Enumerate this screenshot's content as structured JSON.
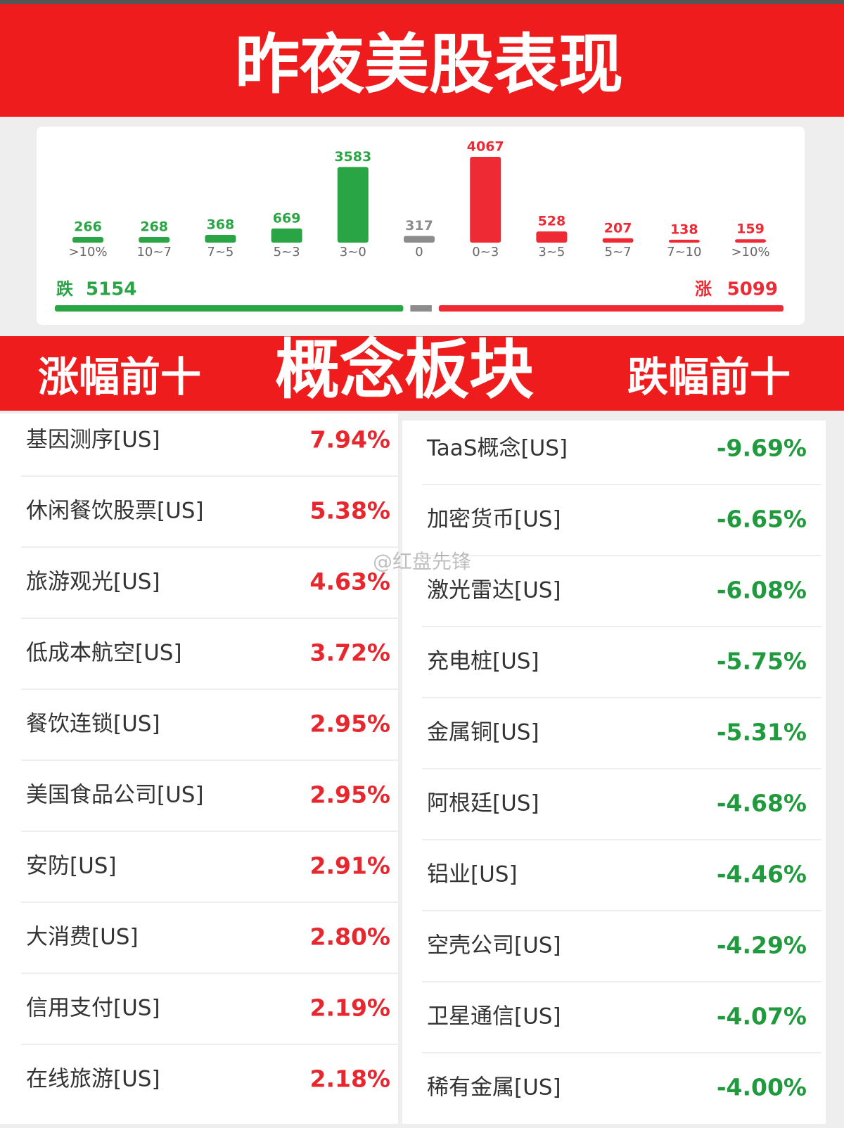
{
  "header": {
    "title": "昨夜美股表现"
  },
  "chart_data": {
    "type": "bar",
    "categories": [
      ">10%",
      "10~7",
      "7~5",
      "5~3",
      "3~0",
      "0",
      "0~3",
      "3~5",
      "5~7",
      "7~10",
      ">10%"
    ],
    "values": [
      266,
      268,
      368,
      669,
      3583,
      317,
      4067,
      528,
      207,
      138,
      159
    ],
    "colors": [
      "#2aa545",
      "#2aa545",
      "#2aa545",
      "#2aa545",
      "#2aa545",
      "#8c8c8c",
      "#ee2a35",
      "#ee2a35",
      "#ee2a35",
      "#ee2a35",
      "#ee2a35"
    ],
    "ylim": [
      0,
      4067
    ],
    "fall": {
      "label": "跌",
      "value": 5154,
      "color": "#2aa545"
    },
    "rise": {
      "label": "涨",
      "value": 5099,
      "color": "#ee2a35"
    },
    "flat_color": "#8c8c8c"
  },
  "section": {
    "left": "涨幅前十",
    "center": "概念板块",
    "right": "跌幅前十"
  },
  "watermark": "@红盘先锋",
  "gainers": {
    "color": "#e8262e",
    "rows": [
      [
        "基因测序[US]",
        "7.94%"
      ],
      [
        "休闲餐饮股票[US]",
        "5.38%"
      ],
      [
        "旅游观光[US]",
        "4.63%"
      ],
      [
        "低成本航空[US]",
        "3.72%"
      ],
      [
        "餐饮连锁[US]",
        "2.95%"
      ],
      [
        "美国食品公司[US]",
        "2.95%"
      ],
      [
        "安防[US]",
        "2.91%"
      ],
      [
        "大消费[US]",
        "2.80%"
      ],
      [
        "信用支付[US]",
        "2.19%"
      ],
      [
        "在线旅游[US]",
        "2.18%"
      ]
    ]
  },
  "losers": {
    "color": "#1f9a3c",
    "rows": [
      [
        "TaaS概念[US]",
        "-9.69%"
      ],
      [
        "加密货币[US]",
        "-6.65%"
      ],
      [
        "激光雷达[US]",
        "-6.08%"
      ],
      [
        "充电桩[US]",
        "-5.75%"
      ],
      [
        "金属铜[US]",
        "-5.31%"
      ],
      [
        "阿根廷[US]",
        "-4.68%"
      ],
      [
        "铝业[US]",
        "-4.46%"
      ],
      [
        "空壳公司[US]",
        "-4.29%"
      ],
      [
        "卫星通信[US]",
        "-4.07%"
      ],
      [
        "稀有金属[US]",
        "-4.00%"
      ]
    ]
  }
}
